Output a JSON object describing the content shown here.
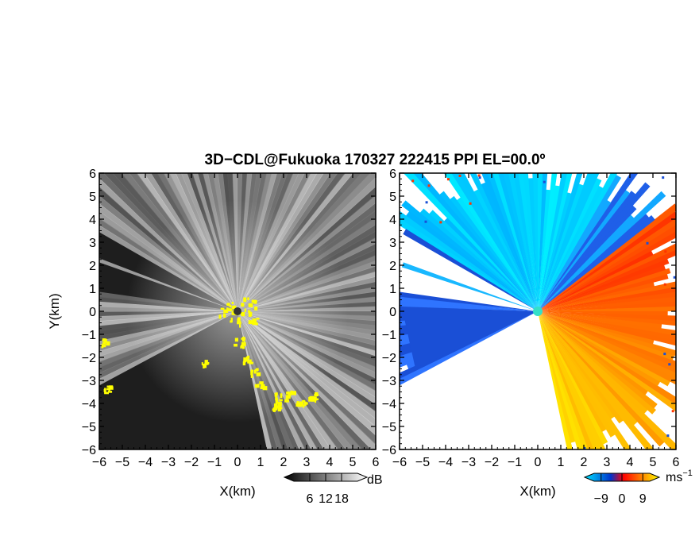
{
  "title": "3D−CDL@Fukuoka 170327 222415 PPI EL=00.0º",
  "chart_data": [
    {
      "type": "heatmap",
      "panel": "reflectivity",
      "xlabel": "X(km)",
      "ylabel": "Y(km)",
      "xlim": [
        -6,
        6
      ],
      "ylim": [
        -6,
        6
      ],
      "xticks": [
        "−6",
        "−5",
        "−4",
        "−3",
        "−2",
        "−1",
        "0",
        "1",
        "2",
        "3",
        "4",
        "5",
        "6"
      ],
      "yticks": [
        "6",
        "5",
        "4",
        "3",
        "2",
        "1",
        "0",
        "−1",
        "−2",
        "−3",
        "−4",
        "−5",
        "−6"
      ],
      "colorbar": {
        "unit": "dB",
        "ticks": [
          "6",
          "12",
          "18"
        ],
        "tick_values": [
          6,
          12,
          18
        ],
        "range": [
          0,
          24
        ],
        "colors": [
          "#000000",
          "#ffffff"
        ]
      },
      "highlight_color": "#ffff00"
    },
    {
      "type": "heatmap",
      "panel": "doppler-velocity",
      "xlabel": "X(km)",
      "ylabel": "",
      "xlim": [
        -6,
        6
      ],
      "ylim": [
        -6,
        6
      ],
      "xticks": [
        "−6",
        "−5",
        "−4",
        "−3",
        "−2",
        "−1",
        "0",
        "1",
        "2",
        "3",
        "4",
        "5",
        "6"
      ],
      "yticks": [
        "6",
        "5",
        "4",
        "3",
        "2",
        "1",
        "0",
        "−1",
        "−2",
        "−3",
        "−4",
        "−5",
        "−6"
      ],
      "colorbar": {
        "unit": "ms",
        "unit_exp": "−1",
        "ticks": [
          "−9",
          "0",
          "9"
        ],
        "tick_values": [
          -9,
          0,
          9
        ],
        "range": [
          -12,
          12
        ],
        "colors": [
          "#00e5ff",
          "#0033cc",
          "#ff0000",
          "#ffff00"
        ]
      }
    }
  ]
}
